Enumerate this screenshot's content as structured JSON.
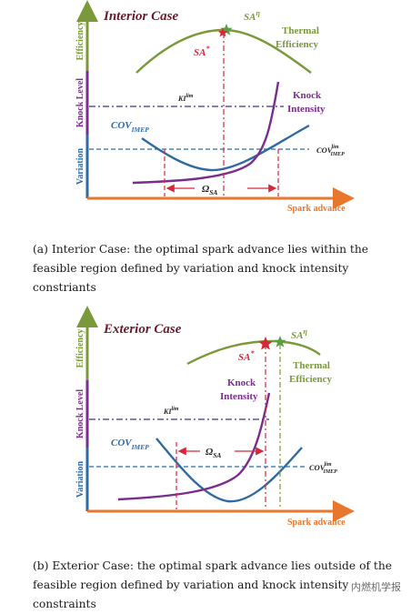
{
  "colors": {
    "efficiency": "#7a9a3a",
    "knock": "#7b2d8e",
    "variation": "#2f6aa0",
    "spark": "#e8772e",
    "dashdot": "#4b2a8a",
    "red": "#d6283a",
    "title": "#6b1a2a"
  },
  "panel_a": {
    "title": "Interior Case",
    "axis_labels": {
      "efficiency": "Efficiency",
      "knock": "Knock Level",
      "variation": "Variation",
      "x": "Spark advance"
    },
    "sa_eta": "SA",
    "sa_eta_sup": "η",
    "sa_star": "SA",
    "sa_star_sup": "*",
    "thermal_1": "Thermal",
    "thermal_2": "Efficiency",
    "knock_1": "Knock",
    "knock_2": "Intensity",
    "ki": "KI",
    "ki_sup": "lim",
    "cov": "COV",
    "cov_sub": "IMEP",
    "cov_lim": "COV",
    "cov_lim_sup": "lim",
    "cov_lim_sub": "IMEP",
    "omega": "Ω",
    "omega_sub": "SA"
  },
  "panel_b": {
    "title": "Exterior Case",
    "axis_labels": {
      "efficiency": "Efficiency",
      "knock": "Knock Level",
      "variation": "Variation",
      "x": "Spark advance"
    },
    "sa_eta": "SA",
    "sa_eta_sup": "η",
    "sa_star": "SA",
    "sa_star_sup": "*",
    "thermal_1": "Thermal",
    "thermal_2": "Efficiency",
    "knock_1": "Knock",
    "knock_2": "Intensity",
    "ki": "KI",
    "ki_sup": "lim",
    "cov": "COV",
    "cov_sub": "IMEP",
    "cov_lim": "COV",
    "cov_lim_sup": "lim",
    "cov_lim_sub": "IMEP",
    "omega": "Ω",
    "omega_sub": "SA"
  },
  "caption_a": "(a) Interior Case: the optimal spark advance lies within the feasible region defined by variation and knock intensity constriants",
  "caption_b": "(b) Exterior Case: the optimal spark advance lies outside of the feasible region defined by variation and knock intensity constraints",
  "watermark": "内燃机学报"
}
